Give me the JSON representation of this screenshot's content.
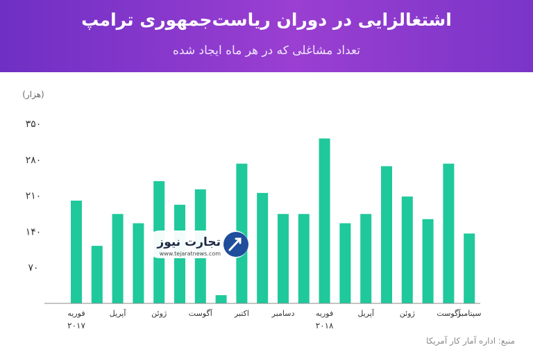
{
  "header": {
    "title": "اشتغالزایی در دوران ریاست‌جمهوری ترامپ",
    "subtitle": "تعداد مشاغلی که در هر ماه ایجاد شده"
  },
  "watermark": {
    "name": "تجارت نیوز",
    "url": "www.tejaratnews.com"
  },
  "source": "منبع: اداره آمار کار آمریکا",
  "colors": {
    "bar": "#1fc99b",
    "header_start": "#6f2fc4",
    "header_end": "#9a3fd1",
    "axis_text": "#333333"
  },
  "chart_data": {
    "type": "bar",
    "ylabel": "(هزار)",
    "ylim": [
      0,
      350
    ],
    "yticks": [
      "۷۰",
      "۱۴۰",
      "۲۱۰",
      "۲۸۰",
      "۳۵۰"
    ],
    "ytick_values": [
      70,
      140,
      210,
      280,
      350
    ],
    "values": [
      200,
      112,
      174,
      156,
      238,
      192,
      222,
      16,
      272,
      215,
      174,
      174,
      321,
      156,
      174,
      267,
      208,
      164,
      272,
      136
    ],
    "xtick_labels": [
      {
        "label": "فوریه",
        "index": 0
      },
      {
        "label": "آپریل",
        "index": 2
      },
      {
        "label": "ژوئن",
        "index": 4
      },
      {
        "label": "آگوست",
        "index": 6
      },
      {
        "label": "اکتبر",
        "index": 8
      },
      {
        "label": "دسامبر",
        "index": 10
      },
      {
        "label": "فوریه",
        "index": 12
      },
      {
        "label": "آپریل",
        "index": 14
      },
      {
        "label": "ژوئن",
        "index": 16
      },
      {
        "label": "آگوست",
        "index": 18
      },
      {
        "label": "سپتامبر",
        "index": 19
      }
    ],
    "year_labels": [
      {
        "label": "۲۰۱۷",
        "index": 0
      },
      {
        "label": "۲۰۱۸",
        "index": 12
      }
    ],
    "grid": false
  }
}
